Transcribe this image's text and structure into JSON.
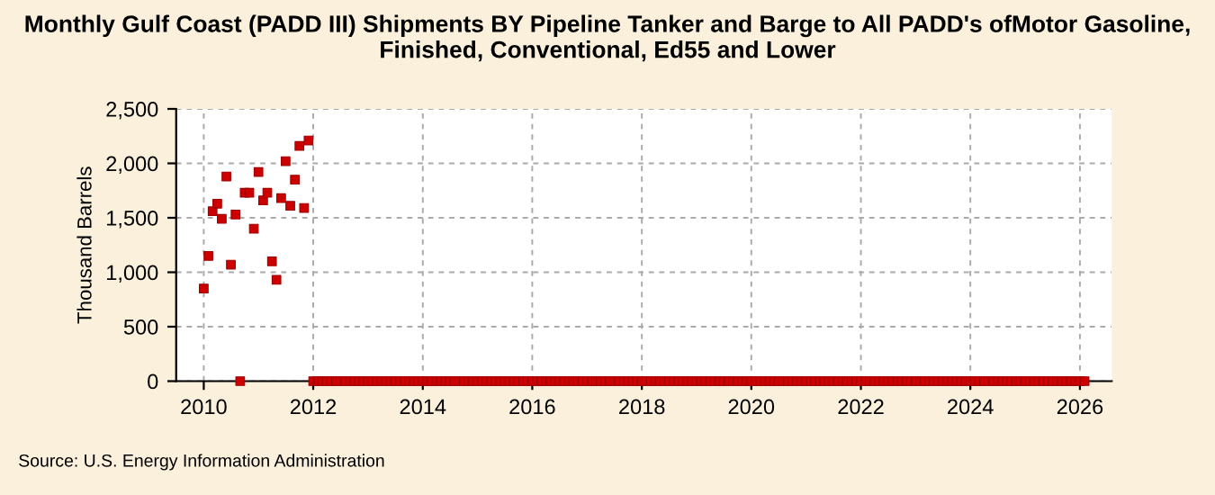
{
  "chart_data": {
    "type": "scatter",
    "title": "Monthly Gulf Coast (PADD III) Shipments BY Pipeline Tanker and Barge to All PADD's ofMotor Gasoline, Finished, Conventional, Ed55 and Lower",
    "ylabel": "Thousand Barrels",
    "annotations": [
      "Source: U.S. Energy Information Administration"
    ],
    "x": [
      "2010-01",
      "2010-02",
      "2010-03",
      "2010-04",
      "2010-05",
      "2010-06",
      "2010-07",
      "2010-08",
      "2010-09",
      "2010-10",
      "2010-11",
      "2010-12",
      "2011-01",
      "2011-02",
      "2011-03",
      "2011-04",
      "2011-05",
      "2011-06",
      "2011-07",
      "2011-08",
      "2011-09",
      "2011-10",
      "2011-11",
      "2011-12",
      "2012-01",
      "2012-02",
      "2012-03",
      "2012-04",
      "2012-05",
      "2012-06",
      "2012-07",
      "2012-08",
      "2012-09",
      "2012-10",
      "2012-11",
      "2012-12",
      "2013-01",
      "2013-02",
      "2013-03",
      "2013-04",
      "2013-05",
      "2013-06",
      "2013-07",
      "2013-08",
      "2013-09",
      "2013-10",
      "2013-11",
      "2013-12",
      "2014-01",
      "2014-02",
      "2014-03",
      "2014-04",
      "2014-05",
      "2014-06",
      "2014-07",
      "2014-08",
      "2014-09",
      "2014-10",
      "2014-11",
      "2014-12",
      "2015-01",
      "2015-02",
      "2015-03",
      "2015-04",
      "2015-05",
      "2015-06",
      "2015-07",
      "2015-08",
      "2015-09",
      "2015-10",
      "2015-11",
      "2015-12",
      "2016-01",
      "2016-02",
      "2016-03",
      "2016-04",
      "2016-05",
      "2016-06",
      "2016-07",
      "2016-08",
      "2016-09",
      "2016-10",
      "2016-11",
      "2016-12",
      "2017-01",
      "2017-02",
      "2017-03",
      "2017-04",
      "2017-05",
      "2017-06",
      "2017-07",
      "2017-08",
      "2017-09",
      "2017-10",
      "2017-11",
      "2017-12",
      "2018-01",
      "2018-02",
      "2018-03",
      "2018-04",
      "2018-05",
      "2018-06",
      "2018-07",
      "2018-08",
      "2018-09",
      "2018-10",
      "2018-11",
      "2018-12",
      "2019-01",
      "2019-02",
      "2019-03",
      "2019-04",
      "2019-05",
      "2019-06",
      "2019-07",
      "2019-08",
      "2019-09",
      "2019-10",
      "2019-11",
      "2019-12",
      "2020-01",
      "2020-02",
      "2020-03",
      "2020-04",
      "2020-05",
      "2020-06",
      "2020-07",
      "2020-08",
      "2020-09",
      "2020-10",
      "2020-11",
      "2020-12",
      "2021-01",
      "2021-02",
      "2021-03",
      "2021-04",
      "2021-05",
      "2021-06",
      "2021-07",
      "2021-08",
      "2021-09",
      "2021-10",
      "2021-11",
      "2021-12",
      "2022-01",
      "2022-02",
      "2022-03",
      "2022-04",
      "2022-05",
      "2022-06",
      "2022-07",
      "2022-08",
      "2022-09",
      "2022-10",
      "2022-11",
      "2022-12",
      "2023-01",
      "2023-02",
      "2023-03",
      "2023-04",
      "2023-05",
      "2023-06",
      "2023-07",
      "2023-08",
      "2023-09",
      "2023-10",
      "2023-11",
      "2023-12",
      "2024-01",
      "2024-02",
      "2024-03",
      "2024-04",
      "2024-05",
      "2024-06",
      "2024-07",
      "2024-08",
      "2024-09",
      "2024-10",
      "2024-11",
      "2024-12",
      "2025-01",
      "2025-02",
      "2025-03",
      "2025-04",
      "2025-05",
      "2025-06",
      "2025-07",
      "2025-08",
      "2025-09",
      "2025-10",
      "2025-11",
      "2025-12",
      "2026-01",
      "2026-02"
    ],
    "series": [
      {
        "color": "#cc0000",
        "values": [
          850,
          1150,
          1560,
          1630,
          1490,
          1880,
          1070,
          1530,
          0,
          1730,
          1730,
          1400,
          1920,
          1660,
          1730,
          1100,
          930,
          1680,
          2020,
          1610,
          1850,
          2160,
          1590,
          2210,
          0,
          0,
          0,
          0,
          0,
          0,
          0,
          0,
          0,
          0,
          0,
          0,
          0,
          0,
          0,
          0,
          0,
          0,
          0,
          0,
          0,
          0,
          0,
          0,
          0,
          0,
          0,
          0,
          0,
          0,
          0,
          0,
          0,
          0,
          0,
          0,
          0,
          0,
          0,
          0,
          0,
          0,
          0,
          0,
          0,
          0,
          0,
          0,
          0,
          0,
          0,
          0,
          0,
          0,
          0,
          0,
          0,
          0,
          0,
          0,
          0,
          0,
          0,
          0,
          0,
          0,
          0,
          0,
          0,
          0,
          0,
          0,
          0,
          0,
          0,
          0,
          0,
          0,
          0,
          0,
          0,
          0,
          0,
          0,
          0,
          0,
          0,
          0,
          0,
          0,
          0,
          0,
          0,
          0,
          0,
          0,
          0,
          0,
          0,
          0,
          0,
          0,
          0,
          0,
          0,
          0,
          0,
          0,
          0,
          0,
          0,
          0,
          0,
          0,
          0,
          0,
          0,
          0,
          0,
          0,
          0,
          0,
          0,
          0,
          0,
          0,
          0,
          0,
          0,
          0,
          0,
          0,
          0,
          0,
          0,
          0,
          0,
          0,
          0,
          0,
          0,
          0,
          0,
          0,
          0,
          0,
          0,
          0,
          0,
          0,
          0,
          0,
          0,
          0,
          0,
          0,
          0,
          0,
          0,
          0,
          0,
          0,
          0,
          0,
          0,
          0,
          0,
          0,
          0,
          0
        ]
      }
    ],
    "xlim": [
      "2009-07",
      "2026-08"
    ],
    "xticks": [
      "2010",
      "2012",
      "2014",
      "2016",
      "2018",
      "2020",
      "2022",
      "2024",
      "2026"
    ],
    "ylim": [
      0,
      2500
    ],
    "yticks": [
      {
        "value": 0,
        "label": "0"
      },
      {
        "value": 500,
        "label": "500"
      },
      {
        "value": 1000,
        "label": "1,000"
      },
      {
        "value": 1500,
        "label": "1,500"
      },
      {
        "value": 2000,
        "label": "2,000"
      },
      {
        "value": 2500,
        "label": "2,500"
      }
    ],
    "grid": true,
    "marker": "square"
  }
}
